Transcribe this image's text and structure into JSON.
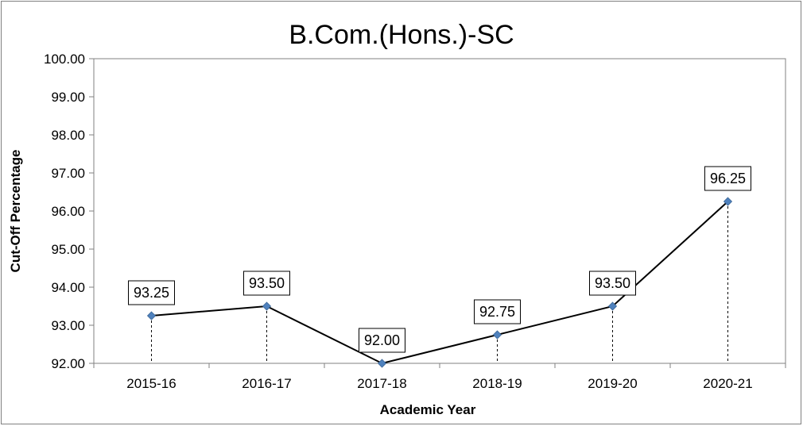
{
  "chart_data": {
    "type": "line",
    "title": "B.Com.(Hons.)-SC",
    "xlabel": "Academic Year",
    "ylabel": "Cut-Off Percentage",
    "categories": [
      "2015-16",
      "2016-17",
      "2017-18",
      "2018-19",
      "2019-20",
      "2020-21"
    ],
    "values": [
      93.25,
      93.5,
      92.0,
      92.75,
      93.5,
      96.25
    ],
    "data_labels": [
      "93.25",
      "93.50",
      "92.00",
      "92.75",
      "93.50",
      "96.25"
    ],
    "ylim": [
      92,
      100
    ],
    "yticks": [
      "92.00",
      "93.00",
      "94.00",
      "95.00",
      "96.00",
      "97.00",
      "98.00",
      "99.00",
      "100.00"
    ],
    "grid": false,
    "legend": "none",
    "drop_lines": true,
    "colors": {
      "line": "#000000",
      "marker": "#4F81BD",
      "border": "#808080"
    }
  }
}
